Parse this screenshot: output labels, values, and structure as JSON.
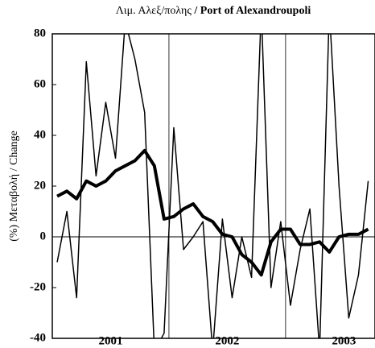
{
  "chart_data": {
    "type": "line",
    "title_gr": "Λιμ. Αλεξ/πολης",
    "title_en": "/ Port of Alexandroupoli",
    "ylabel": "(%) Μεταβολή / Change",
    "x": [
      1,
      2,
      3,
      4,
      5,
      6,
      7,
      8,
      9,
      10,
      11,
      12,
      13,
      14,
      15,
      16,
      17,
      18,
      19,
      20,
      21,
      22,
      23,
      24,
      25,
      26,
      27,
      28,
      29,
      30,
      31,
      32,
      33
    ],
    "xlim": [
      0.5,
      33.7
    ],
    "xticks": [
      {
        "value": 6.5,
        "label": "2001"
      },
      {
        "value": 18.5,
        "label": "2002"
      },
      {
        "value": 30.5,
        "label": "2003"
      }
    ],
    "separators": [
      12.5,
      24.5
    ],
    "ylim": [
      -40,
      80
    ],
    "yticks": [
      -40,
      -20,
      0,
      20,
      40,
      60,
      80
    ],
    "series": [
      {
        "color": "#000000",
        "width": 1.5,
        "values": [
          -10,
          10,
          -24,
          69,
          24,
          53,
          31,
          85,
          70,
          49,
          -45,
          -38,
          43,
          -5,
          0,
          6,
          -45,
          7,
          -24,
          0,
          -16,
          90,
          -20,
          6,
          -27,
          -5,
          11,
          -45,
          90,
          20,
          -32,
          -15,
          22
        ]
      },
      {
        "color": "#000000",
        "width": 4,
        "values": [
          16,
          18,
          15,
          22,
          20,
          22,
          26,
          28,
          30,
          34,
          28,
          7,
          8,
          11,
          13,
          8,
          6,
          1,
          0,
          -7,
          -10,
          -15,
          -2,
          3,
          3,
          -3,
          -3,
          -2,
          -6,
          0,
          1,
          1,
          3
        ]
      }
    ]
  }
}
